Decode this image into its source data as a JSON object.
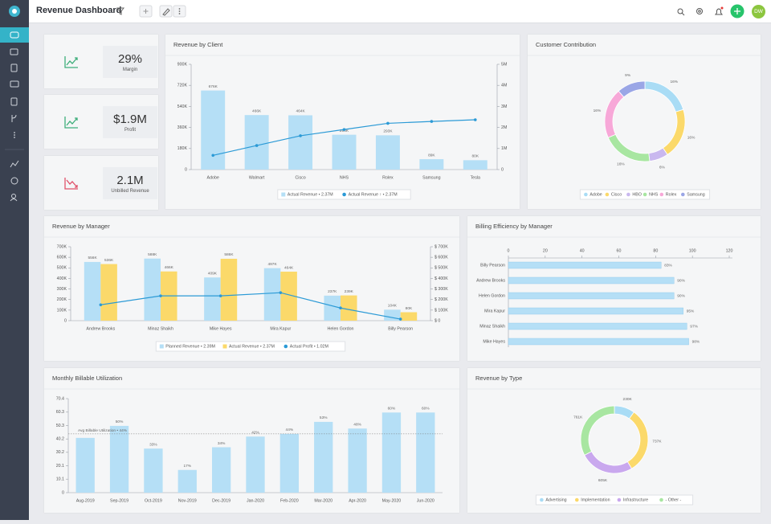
{
  "header": {
    "title": "Revenue Dashboard",
    "avatar": "DW"
  },
  "kpis": [
    {
      "value": "29%",
      "label": "Margin"
    },
    {
      "value": "$1.9M",
      "label": "Profit"
    },
    {
      "value": "2.1M",
      "label": "Unbilled Revenue"
    }
  ],
  "chart_data": [
    {
      "type": "bar",
      "title": "Revenue by Client",
      "categories": [
        "Adobe",
        "Walmart",
        "Cisco",
        "NHS",
        "Rolex",
        "Samsung",
        "Tesla"
      ],
      "series": [
        {
          "name": "Actual Revenue • 2.37M",
          "type": "bar",
          "color": "#b5dff6",
          "values": [
            676000,
            466000,
            464000,
            298000,
            293000,
            89000,
            80000
          ],
          "value_labels": [
            "676K",
            "466K",
            "464K",
            "298K",
            "293K",
            "89K",
            "80K"
          ]
        },
        {
          "name": "Actual Revenue ↑ • 2.37M",
          "type": "line",
          "axis": "y2",
          "color": "#2b9ad6",
          "values": [
            676000,
            1142000,
            1606000,
            1904000,
            2197000,
            2286000,
            2366000
          ]
        }
      ],
      "ylim": [
        0,
        900000
      ],
      "yticks": [
        0,
        {
          "value": 180000,
          "label": "180K"
        },
        {
          "value": 360000,
          "label": "360K"
        },
        {
          "value": 540000,
          "label": "540K"
        },
        {
          "value": 720000,
          "label": "720K"
        },
        {
          "value": 900000,
          "label": "900K"
        }
      ],
      "y2lim": [
        0,
        5000000
      ],
      "y2ticks": [
        0,
        {
          "value": 1000000,
          "label": "1M"
        },
        {
          "value": 2000000,
          "label": "2M"
        },
        {
          "value": 3000000,
          "label": "3M"
        },
        {
          "value": 4000000,
          "label": "4M"
        },
        {
          "value": 5000000,
          "label": "5M"
        }
      ]
    },
    {
      "type": "pie",
      "title": "Customer Contribution",
      "donut": true,
      "categories": [
        "Adobe",
        "Cisco",
        "HBO",
        "NHS",
        "Rolex",
        "Samsung"
      ],
      "values": [
        16,
        16,
        6,
        16,
        16,
        9
      ],
      "value_labels": [
        "16%",
        "16%",
        "6%",
        "16%",
        "16%",
        "9%"
      ],
      "colors": [
        "#a9dcf5",
        "#fbd96a",
        "#c9b8ef",
        "#a8e6a1",
        "#f7a8d8",
        "#9aa6e6"
      ]
    },
    {
      "type": "bar",
      "title": "Revenue by Manager",
      "categories": [
        "Andrew Brooks",
        "Minaz Shaikh",
        "Mike Hayes",
        "Mira Kapur",
        "Helen Gordon",
        "Billy Pearson"
      ],
      "series": [
        {
          "name": "Planned Revenue • 2.39M",
          "type": "bar",
          "color": "#b5dff6",
          "values": [
            556000,
            588000,
            409000,
            497000,
            237000,
            104000
          ],
          "value_labels": [
            "556K",
            "588K",
            "409K",
            "497K",
            "237K",
            "104K"
          ]
        },
        {
          "name": "Actual Revenue • 2.37M",
          "type": "bar",
          "color": "#fbd96a",
          "values": [
            536000,
            466000,
            586000,
            464000,
            239000,
            80000
          ],
          "value_labels": [
            "536K",
            "466K",
            "586K",
            "464K",
            "239K",
            "80K"
          ]
        },
        {
          "name": "Actual Profit • 1.02M",
          "type": "line",
          "axis": "y2",
          "color": "#2b9ad6",
          "values": [
            150000,
            235000,
            235000,
            265000,
            120000,
            15000
          ]
        }
      ],
      "ylim": [
        0,
        700000
      ],
      "yticks": [
        0,
        {
          "value": 100000,
          "label": "100K"
        },
        {
          "value": 200000,
          "label": "200K"
        },
        {
          "value": 300000,
          "label": "300K"
        },
        {
          "value": 400000,
          "label": "400K"
        },
        {
          "value": 500000,
          "label": "500K"
        },
        {
          "value": 600000,
          "label": "600K"
        },
        {
          "value": 700000,
          "label": "700K"
        }
      ],
      "y2lim": [
        0,
        700000
      ],
      "y2ticks": [
        {
          "value": 0,
          "label": "$ 0"
        },
        {
          "value": 100000,
          "label": "$ 100K"
        },
        {
          "value": 200000,
          "label": "$ 200K"
        },
        {
          "value": 300000,
          "label": "$ 300K"
        },
        {
          "value": 400000,
          "label": "$ 400K"
        },
        {
          "value": 500000,
          "label": "$ 500K"
        },
        {
          "value": 600000,
          "label": "$ 600K"
        },
        {
          "value": 700000,
          "label": "$ 700K"
        }
      ]
    },
    {
      "type": "bar",
      "orientation": "horizontal",
      "title": "Billing Efficiency by Manager",
      "categories": [
        "Billy Pearson",
        "Andrew Brooks",
        "Helen Gordon",
        "Mira Kapur",
        "Minaz Shaikh",
        "Mike Hayes"
      ],
      "values": [
        83,
        90,
        90,
        95,
        97,
        98
      ],
      "value_labels": [
        "83%",
        "90%",
        "90%",
        "95%",
        "97%",
        "98%"
      ],
      "color": "#b5dff6",
      "xlim": [
        0,
        120
      ],
      "xticks": [
        0,
        20,
        40,
        60,
        80,
        100,
        120
      ]
    },
    {
      "type": "bar",
      "title": "Monthly Billable Utilization",
      "categories": [
        "Aug-2019",
        "Sep-2019",
        "Oct-2019",
        "Nov-2019",
        "Dec-2019",
        "Jan-2020",
        "Feb-2020",
        "Mar-2020",
        "Apr-2020",
        "May-2020",
        "Jun-2020"
      ],
      "values": [
        41,
        50,
        33,
        17,
        34,
        42,
        44,
        53,
        48,
        60,
        60
      ],
      "value_labels": [
        null,
        "50%",
        "33%",
        "17%",
        "34%",
        "42%",
        "44%",
        "53%",
        "48%",
        "60%",
        "60%"
      ],
      "color": "#b5dff6",
      "ylim": [
        0,
        70.4
      ],
      "yticks": [
        0,
        10.1,
        20.1,
        30.2,
        40.2,
        50.3,
        60.3,
        70.4
      ],
      "reference": {
        "value": 44,
        "label": "Avg Billable Utilization • 44%"
      }
    },
    {
      "type": "pie",
      "title": "Revenue by Type",
      "donut": true,
      "categories": [
        "Advertising",
        "Implementation",
        "Infrastructure",
        "- Other -"
      ],
      "values": [
        230000,
        737000,
        605000,
        761000
      ],
      "value_labels": [
        "230K",
        "737K",
        "605K",
        "761K"
      ],
      "colors": [
        "#a9dcf5",
        "#fbd96a",
        "#c9a8ee",
        "#a8e6a1"
      ]
    }
  ]
}
